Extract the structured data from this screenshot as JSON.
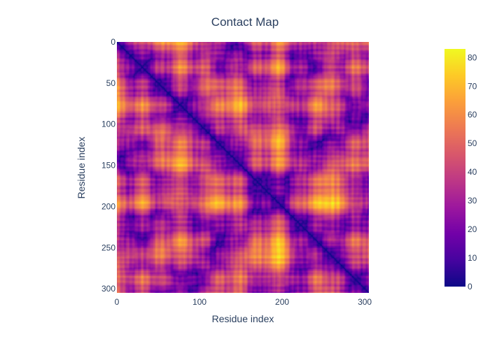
{
  "chart_data": {
    "type": "heatmap",
    "title": "Contact Map",
    "xlabel": "Residue index",
    "ylabel": "Residue index",
    "n_residues": 305,
    "x_range": [
      0,
      305
    ],
    "y_range": [
      0,
      305
    ],
    "y_reversed": true,
    "x_ticks": [
      0,
      100,
      200,
      300
    ],
    "y_ticks": [
      0,
      50,
      100,
      150,
      200,
      250,
      300
    ],
    "colorbar": {
      "min": 0,
      "max": 83,
      "ticks": [
        0,
        10,
        20,
        30,
        40,
        50,
        60,
        70,
        80
      ],
      "colorscale": [
        "#0d0887",
        "#46039f",
        "#7201a8",
        "#9c179e",
        "#bd3786",
        "#d8576b",
        "#ed7953",
        "#fb9f3a",
        "#fdca26",
        "#f0f921"
      ]
    },
    "description_of_values": "pairwise distance matrix; zero along the diagonal, symmetric, values up to ~83"
  }
}
